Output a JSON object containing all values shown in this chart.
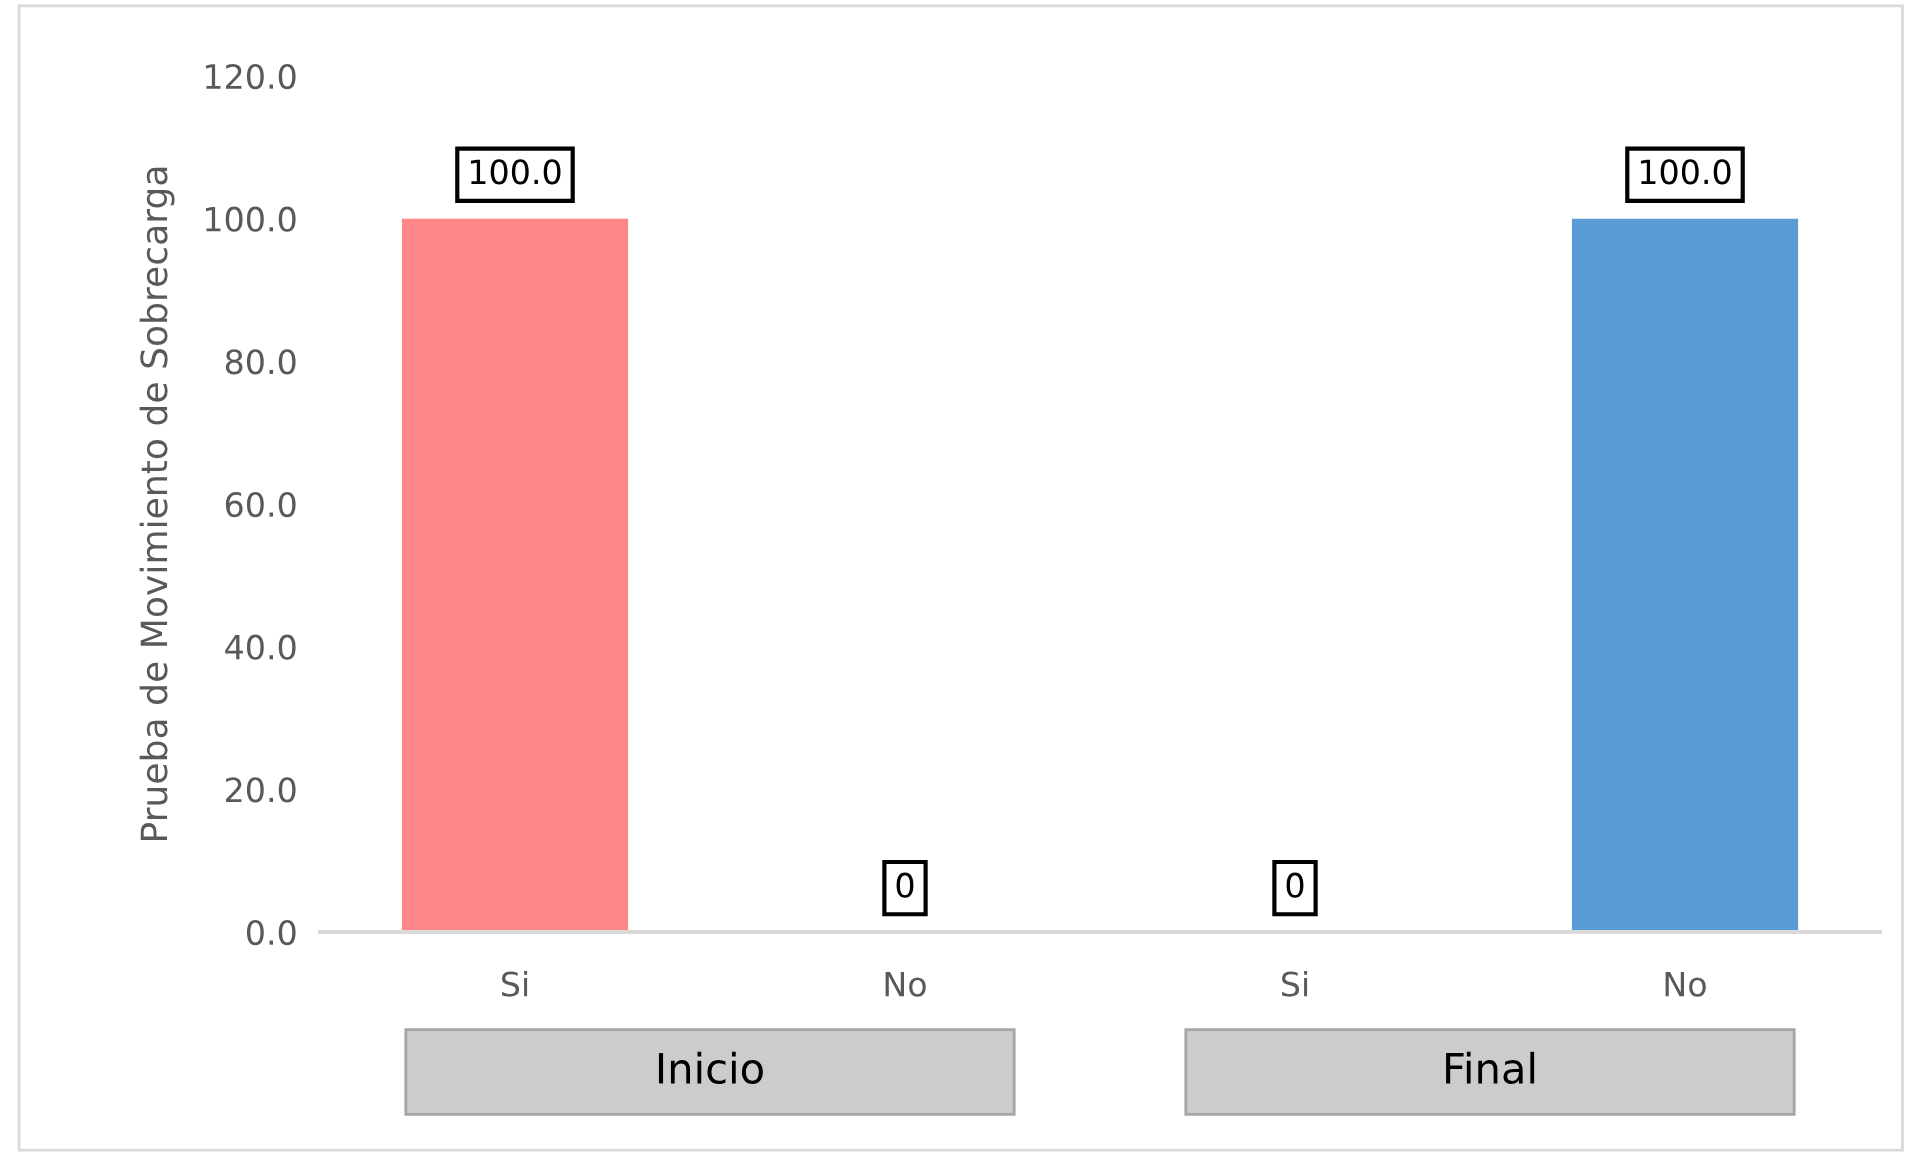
{
  "chart_data": {
    "type": "bar",
    "ylabel": "Prueba de Movimiento de Sobrecarga",
    "categories": [
      "Si",
      "No",
      "Si",
      "No"
    ],
    "values": [
      100.0,
      0,
      0,
      100.0
    ],
    "colors": [
      "#ff8787",
      "#ff8787",
      "#5b9bd5",
      "#5b9bd5"
    ],
    "value_labels": [
      "100.0",
      "0",
      "0",
      "100.0"
    ],
    "annotations": [
      "Inicio",
      "Final"
    ],
    "ylim": [
      0,
      120
    ],
    "yticks": [
      {
        "value": 0,
        "label": "0.0"
      },
      {
        "value": 20,
        "label": "20.0"
      },
      {
        "value": 40,
        "label": "40.0"
      },
      {
        "value": 60,
        "label": "60.0"
      },
      {
        "value": 80,
        "label": "80.0"
      },
      {
        "value": 100,
        "label": "100.0"
      },
      {
        "value": 120,
        "label": "120.0"
      }
    ],
    "grid": false
  }
}
